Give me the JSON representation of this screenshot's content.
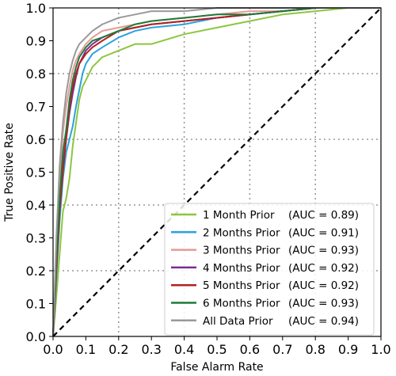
{
  "chart_data": {
    "type": "line",
    "title": "",
    "xlabel": "False Alarm Rate",
    "ylabel": "True Positive Rate",
    "xlim": [
      0.0,
      1.0
    ],
    "ylim": [
      0.0,
      1.0
    ],
    "xticks": [
      "0.0",
      "0.1",
      "0.2",
      "0.3",
      "0.4",
      "0.5",
      "0.6",
      "0.7",
      "0.8",
      "0.9",
      "1.0"
    ],
    "yticks": [
      "0.0",
      "0.1",
      "0.2",
      "0.3",
      "0.4",
      "0.5",
      "0.6",
      "0.7",
      "0.8",
      "0.9",
      "1.0"
    ],
    "grid": true,
    "legend_position": "lower-right",
    "series": [
      {
        "name": "1 Month Prior",
        "auc_label": "(AUC = 0.89)",
        "color": "#8cc63f",
        "x": [
          0.0,
          0.01,
          0.02,
          0.03,
          0.04,
          0.05,
          0.06,
          0.07,
          0.08,
          0.09,
          0.1,
          0.12,
          0.15,
          0.2,
          0.25,
          0.3,
          0.4,
          0.5,
          0.6,
          0.7,
          0.8,
          0.9,
          1.0
        ],
        "y": [
          0.0,
          0.12,
          0.25,
          0.38,
          0.42,
          0.48,
          0.58,
          0.65,
          0.72,
          0.76,
          0.78,
          0.82,
          0.85,
          0.87,
          0.89,
          0.89,
          0.92,
          0.94,
          0.96,
          0.98,
          0.99,
          1.0,
          1.0
        ]
      },
      {
        "name": "2 Months Prior",
        "auc_label": "(AUC = 0.91)",
        "color": "#29a3dd",
        "x": [
          0.0,
          0.01,
          0.02,
          0.03,
          0.04,
          0.05,
          0.06,
          0.07,
          0.08,
          0.09,
          0.1,
          0.12,
          0.15,
          0.2,
          0.25,
          0.3,
          0.4,
          0.5,
          0.6,
          0.7,
          0.8,
          0.9,
          1.0
        ],
        "y": [
          0.0,
          0.18,
          0.35,
          0.48,
          0.56,
          0.6,
          0.64,
          0.7,
          0.75,
          0.8,
          0.83,
          0.86,
          0.88,
          0.91,
          0.93,
          0.94,
          0.95,
          0.97,
          0.98,
          0.99,
          1.0,
          1.0,
          1.0
        ]
      },
      {
        "name": "3 Months Prior",
        "auc_label": "(AUC = 0.93)",
        "color": "#e59a98",
        "x": [
          0.0,
          0.01,
          0.02,
          0.03,
          0.04,
          0.05,
          0.06,
          0.07,
          0.08,
          0.1,
          0.12,
          0.15,
          0.2,
          0.25,
          0.3,
          0.4,
          0.5,
          0.6,
          0.7,
          0.8,
          0.9,
          1.0
        ],
        "y": [
          0.0,
          0.25,
          0.45,
          0.62,
          0.7,
          0.76,
          0.81,
          0.84,
          0.86,
          0.89,
          0.91,
          0.93,
          0.94,
          0.95,
          0.96,
          0.97,
          0.98,
          0.99,
          0.99,
          1.0,
          1.0,
          1.0
        ]
      },
      {
        "name": "4 Months Prior",
        "auc_label": "(AUC = 0.92)",
        "color": "#7b2d8e",
        "x": [
          0.0,
          0.01,
          0.02,
          0.03,
          0.04,
          0.05,
          0.06,
          0.07,
          0.08,
          0.1,
          0.12,
          0.15,
          0.2,
          0.25,
          0.3,
          0.4,
          0.5,
          0.6,
          0.7,
          0.8,
          0.9,
          1.0
        ],
        "y": [
          0.0,
          0.22,
          0.4,
          0.52,
          0.6,
          0.68,
          0.74,
          0.79,
          0.83,
          0.87,
          0.89,
          0.91,
          0.93,
          0.94,
          0.95,
          0.96,
          0.97,
          0.98,
          0.99,
          1.0,
          1.0,
          1.0
        ]
      },
      {
        "name": "5 Months Prior",
        "auc_label": "(AUC = 0.92)",
        "color": "#b22222",
        "x": [
          0.0,
          0.01,
          0.02,
          0.03,
          0.04,
          0.05,
          0.06,
          0.07,
          0.08,
          0.1,
          0.12,
          0.15,
          0.2,
          0.25,
          0.3,
          0.4,
          0.5,
          0.6,
          0.7,
          0.8,
          0.9,
          1.0
        ],
        "y": [
          0.0,
          0.2,
          0.38,
          0.5,
          0.6,
          0.7,
          0.76,
          0.8,
          0.83,
          0.86,
          0.88,
          0.9,
          0.93,
          0.94,
          0.95,
          0.96,
          0.97,
          0.98,
          0.99,
          1.0,
          1.0,
          1.0
        ]
      },
      {
        "name": "6 Months Prior",
        "auc_label": "(AUC = 0.93)",
        "color": "#1e7b3a",
        "x": [
          0.0,
          0.01,
          0.02,
          0.03,
          0.04,
          0.05,
          0.06,
          0.07,
          0.08,
          0.1,
          0.12,
          0.15,
          0.2,
          0.25,
          0.3,
          0.4,
          0.5,
          0.6,
          0.7,
          0.8,
          0.9,
          1.0
        ],
        "y": [
          0.0,
          0.24,
          0.42,
          0.56,
          0.63,
          0.72,
          0.78,
          0.82,
          0.85,
          0.88,
          0.9,
          0.91,
          0.93,
          0.95,
          0.96,
          0.97,
          0.98,
          0.98,
          0.99,
          1.0,
          1.0,
          1.0
        ]
      },
      {
        "name": "All Data Prior",
        "auc_label": "(AUC = 0.94)",
        "color": "#999999",
        "x": [
          0.0,
          0.01,
          0.02,
          0.03,
          0.04,
          0.05,
          0.06,
          0.07,
          0.08,
          0.1,
          0.12,
          0.15,
          0.2,
          0.25,
          0.3,
          0.4,
          0.5,
          0.6,
          0.7,
          0.8,
          0.9,
          1.0
        ],
        "y": [
          0.0,
          0.3,
          0.52,
          0.65,
          0.74,
          0.8,
          0.84,
          0.87,
          0.89,
          0.91,
          0.93,
          0.95,
          0.97,
          0.98,
          0.99,
          0.99,
          1.0,
          1.0,
          1.0,
          1.0,
          1.0,
          1.0
        ]
      }
    ],
    "reference_line": {
      "x": [
        0.0,
        1.0
      ],
      "y": [
        0.0,
        1.0
      ],
      "color": "#000000",
      "style": "dashed"
    }
  }
}
